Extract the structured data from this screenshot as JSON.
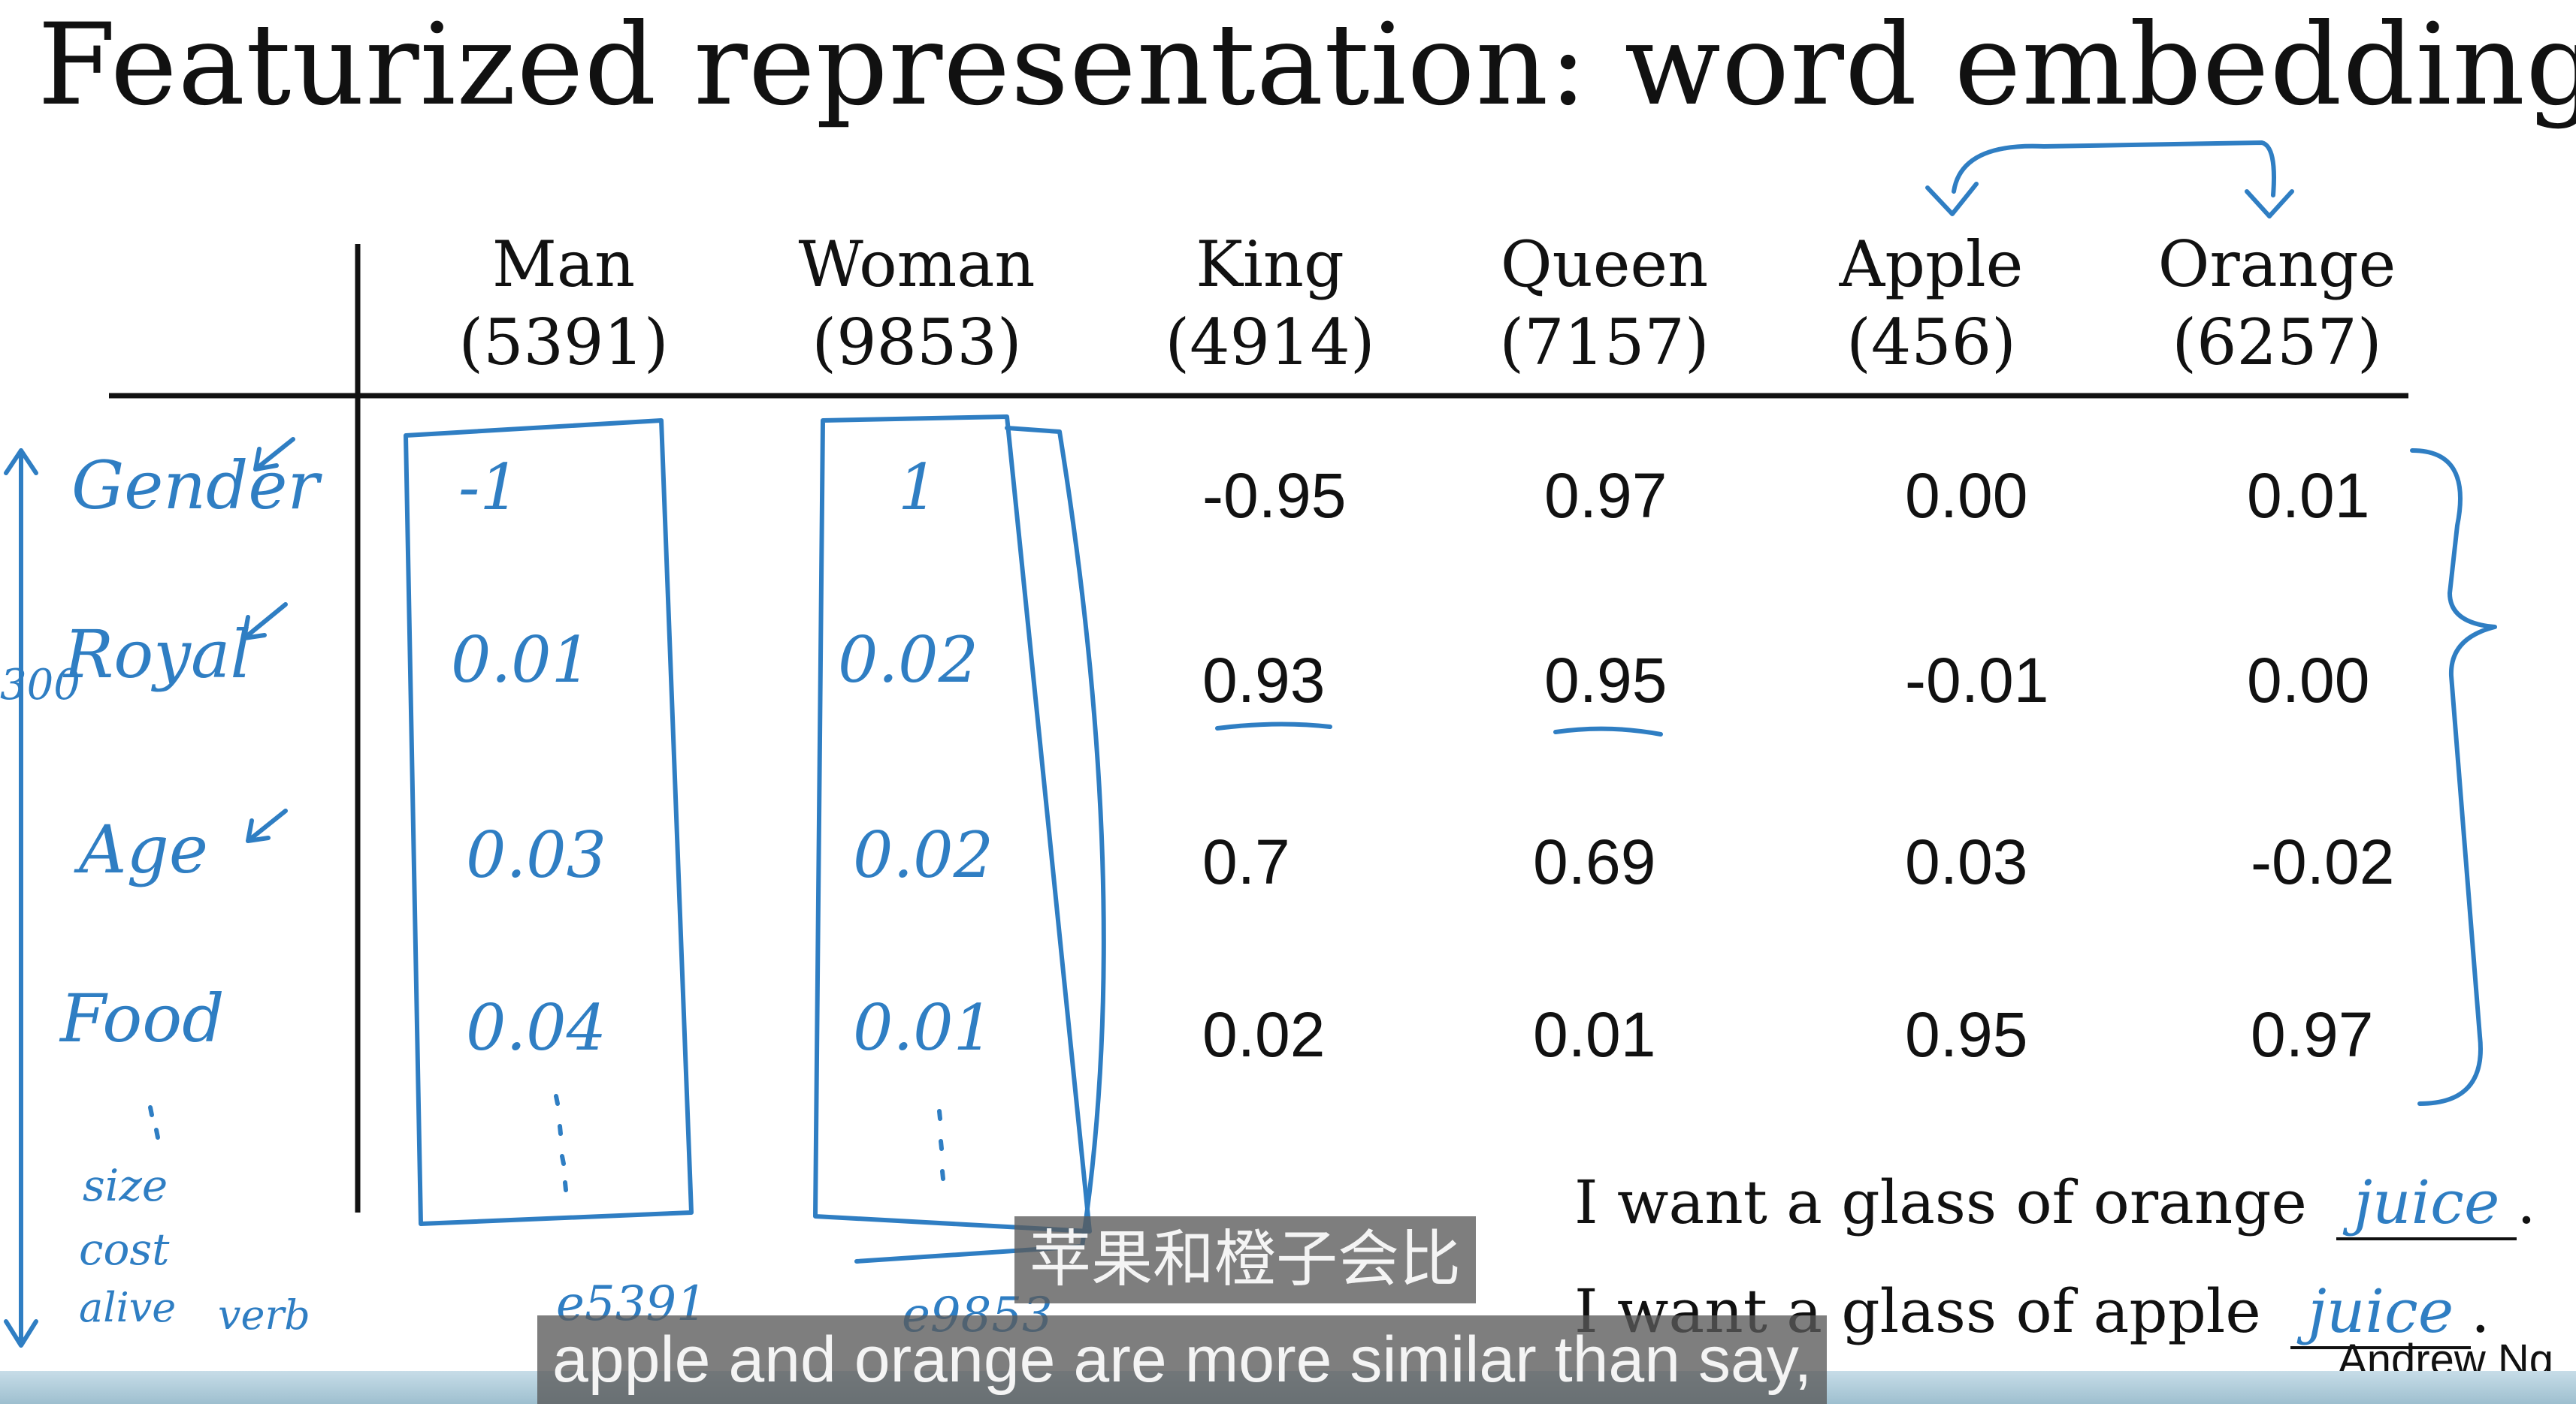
{
  "slide": {
    "title": "Featurized representation: word embedding",
    "author": "Andrew Ng"
  },
  "table": {
    "columns": [
      {
        "word": "Man",
        "index": "(5391)"
      },
      {
        "word": "Woman",
        "index": "(9853)"
      },
      {
        "word": "King",
        "index": "(4914)"
      },
      {
        "word": "Queen",
        "index": "(7157)"
      },
      {
        "word": "Apple",
        "index": "(456)"
      },
      {
        "word": "Orange",
        "index": "(6257)"
      }
    ],
    "rows": [
      {
        "label": "Gender",
        "man": "-1",
        "woman": "1",
        "king": "-0.95",
        "queen": "0.97",
        "apple": "0.00",
        "orange": "0.01"
      },
      {
        "label": "Royal",
        "man": "0.01",
        "woman": "0.02",
        "king": "0.93",
        "queen": "0.95",
        "apple": "-0.01",
        "orange": "0.00"
      },
      {
        "label": "Age",
        "man": "0.03",
        "woman": "0.02",
        "king": "0.7",
        "queen": "0.69",
        "apple": "0.03",
        "orange": "-0.02"
      },
      {
        "label": "Food",
        "man": "0.04",
        "woman": "0.01",
        "king": "0.02",
        "queen": "0.01",
        "apple": "0.95",
        "orange": "0.97"
      }
    ],
    "extra_labels": [
      "size",
      "cost",
      "alive",
      "verb"
    ],
    "side_note": "300",
    "vector_labels": {
      "man": "e5391",
      "woman": "e9853"
    }
  },
  "sentences": [
    {
      "text": "I want a glass of orange",
      "blank": "juice",
      "end": "."
    },
    {
      "text": "I want a glass of apple",
      "blank": "juice",
      "end": "."
    }
  ],
  "subtitles": {
    "chinese": "苹果和橙子会比",
    "english": "apple and orange are more similar than say,"
  },
  "colors": {
    "ink": "#2f7ec3",
    "text": "#111111",
    "subtitle_bg": "#5a5a5a"
  }
}
